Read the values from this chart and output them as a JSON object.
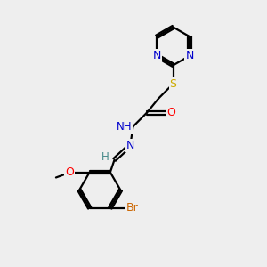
{
  "background_color": "#eeeeee",
  "atom_colors": {
    "N": "#0000cc",
    "O": "#ff0000",
    "S": "#ccaa00",
    "Br": "#cc6600",
    "C": "#000000",
    "H": "#448888"
  },
  "bond_color": "#000000",
  "bond_width": 1.6,
  "figsize": [
    3.0,
    3.0
  ],
  "dpi": 100
}
